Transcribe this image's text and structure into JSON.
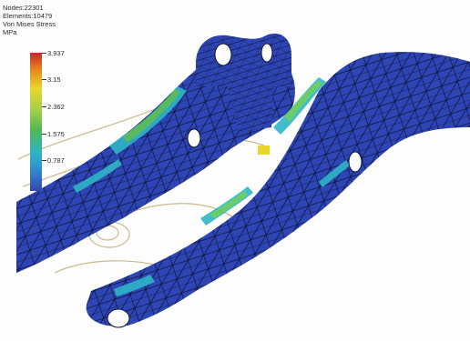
{
  "info": {
    "nodes": "Nodes:22301",
    "elements": "Elements:10479",
    "result": "Von Mises Stress",
    "unit": "MPa"
  },
  "legend": {
    "labels": [
      "3.937",
      "3.15",
      "2.362",
      "1.575",
      "0.787"
    ],
    "colors": [
      "#c8242a",
      "#e8851c",
      "#ead62a",
      "#9ed04a",
      "#4fb852",
      "#2fb6c2",
      "#2f8fd0",
      "#3546b0"
    ]
  },
  "colors": {
    "mesh_fill": "#2e45b5",
    "mesh_lines": "#0b1338",
    "stress_high": "#3fbf5a",
    "stress_mid": "#2fb6c8",
    "outline": "#c9b98d"
  }
}
